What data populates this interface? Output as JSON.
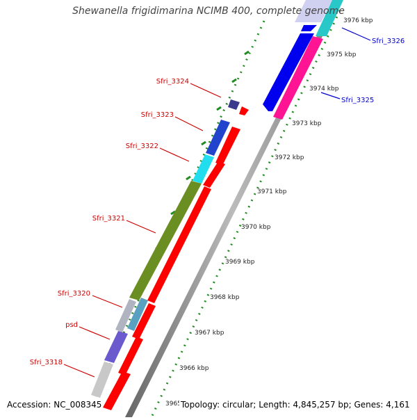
{
  "title": "Shewanella frigidimarina NCIMB 400, complete genome",
  "footer": {
    "accession": "Accession: NC_008345",
    "summary": "Topology: circular; Length: 4,845,257 bp; Genes: 4,161"
  },
  "scale_ticks": [
    "3965",
    "3966 kbp",
    "3967 kbp",
    "3968 kbp",
    "3969 kbp",
    "3970 kbp",
    "3971 kbp",
    "3972 kbp",
    "3973 kbp",
    "3974 kbp",
    "3975 kbp",
    "3976 kbp"
  ],
  "genes_left": [
    "Sfri_3324",
    "Sfri_3323",
    "Sfri_3322",
    "Sfri_3321",
    "Sfri_3320",
    "psd",
    "Sfri_3318"
  ],
  "genes_right": [
    "Sfri_3326",
    "Sfri_3325"
  ],
  "colors": {
    "label_left": "#cc0000",
    "label_right": "#0000cc",
    "tick_dots": "#228b22",
    "arrow_red": "#ff0000",
    "backbone": "#888888"
  }
}
